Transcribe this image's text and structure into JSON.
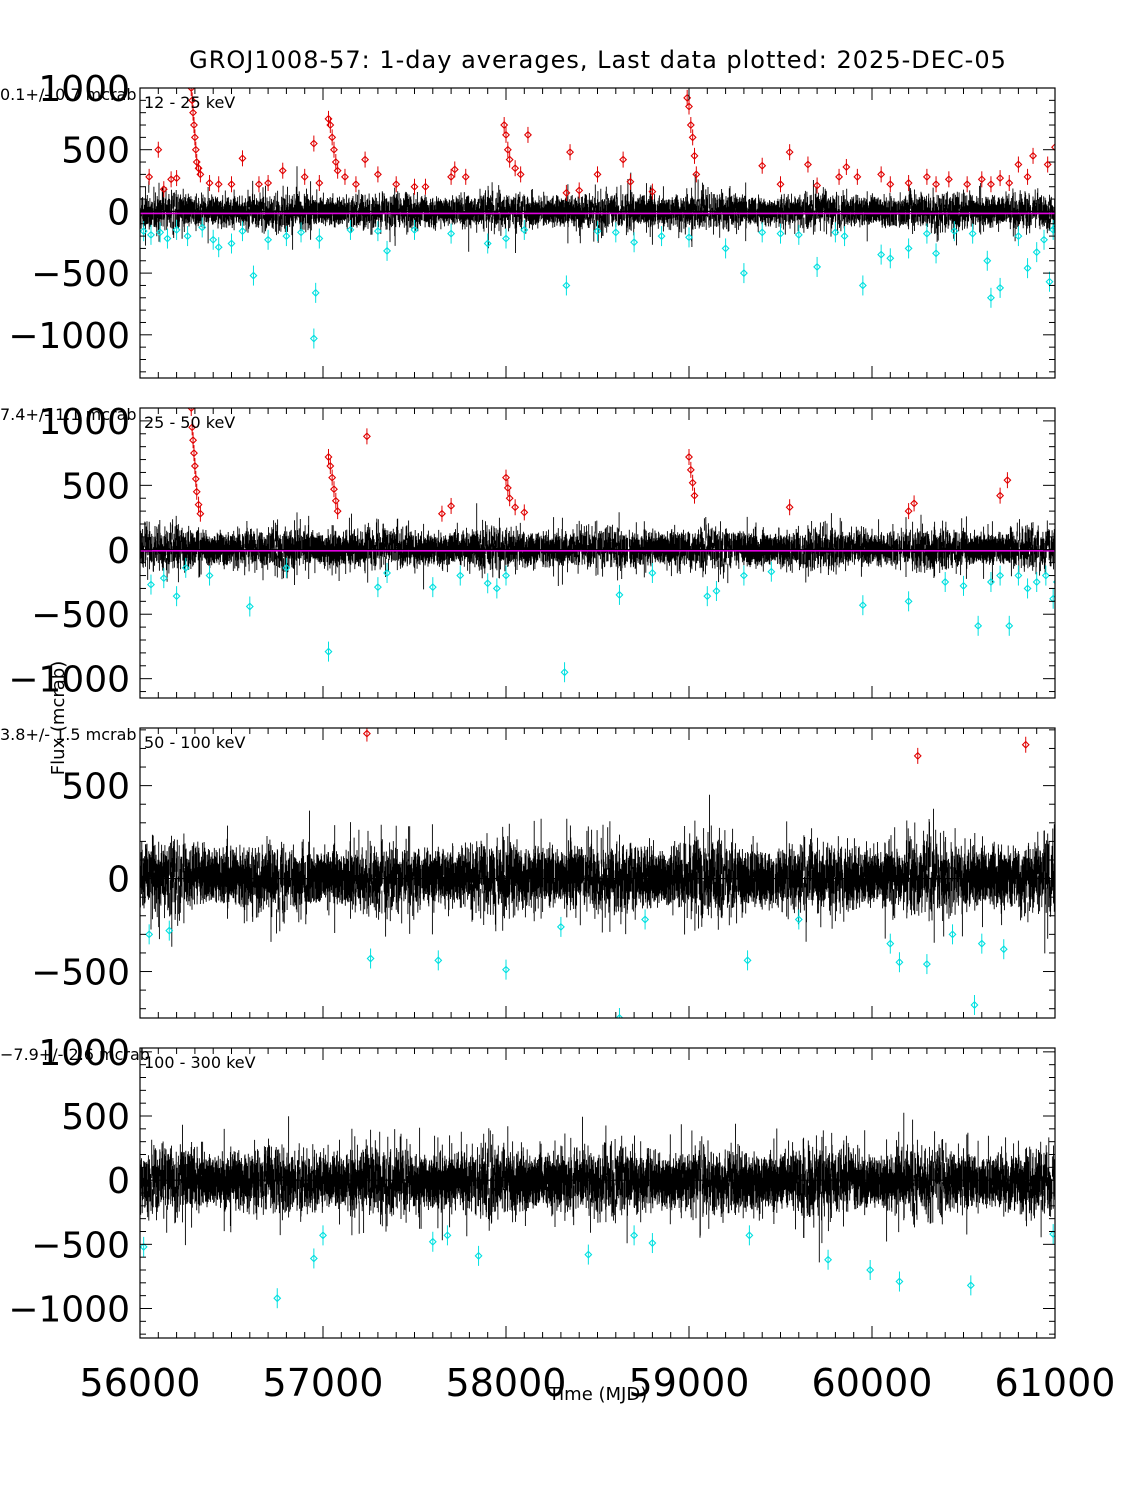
{
  "title": "GROJ1008-57:  1-day averages,  Last data plotted: 2025-DEC-05",
  "xlabel": "Time (MJD)",
  "ylabel": "Flux (mcrab)",
  "colors": {
    "normal": "#000000",
    "high_outlier": "#e00000",
    "low_outlier": "#00e0e0",
    "mean_line": "#e000e0"
  },
  "chart_data": [
    {
      "type": "scatter",
      "band": "12 - 25 keV",
      "mean_label": "0.1+/-      0.7 mcrab",
      "mean": 0.1,
      "xlim": [
        56000,
        61000
      ],
      "ylim": [
        -1350,
        1000
      ],
      "y_ticks": [
        1000,
        500,
        0,
        -500,
        -1000
      ],
      "y_tick_labels": [
        "1000",
        "500",
        "0",
        "−500",
        "−1000"
      ],
      "scatter": 120,
      "seed": 11,
      "high_outliers": [
        [
          56050,
          280
        ],
        [
          56100,
          500
        ],
        [
          56130,
          180
        ],
        [
          56170,
          260
        ],
        [
          56200,
          270
        ],
        [
          56280,
          1000
        ],
        [
          56285,
          900
        ],
        [
          56290,
          800
        ],
        [
          56295,
          700
        ],
        [
          56300,
          600
        ],
        [
          56305,
          500
        ],
        [
          56310,
          400
        ],
        [
          56320,
          350
        ],
        [
          56330,
          300
        ],
        [
          56380,
          230
        ],
        [
          56430,
          220
        ],
        [
          56500,
          220
        ],
        [
          56560,
          430
        ],
        [
          56650,
          220
        ],
        [
          56700,
          230
        ],
        [
          56780,
          330
        ],
        [
          56900,
          280
        ],
        [
          56950,
          550
        ],
        [
          56980,
          230
        ],
        [
          57030,
          750
        ],
        [
          57040,
          700
        ],
        [
          57050,
          600
        ],
        [
          57060,
          500
        ],
        [
          57070,
          400
        ],
        [
          57080,
          330
        ],
        [
          57120,
          280
        ],
        [
          57180,
          220
        ],
        [
          57230,
          420
        ],
        [
          57300,
          300
        ],
        [
          57400,
          220
        ],
        [
          57500,
          200
        ],
        [
          57560,
          200
        ],
        [
          57700,
          280
        ],
        [
          57720,
          340
        ],
        [
          57780,
          280
        ],
        [
          57990,
          700
        ],
        [
          58000,
          620
        ],
        [
          58010,
          500
        ],
        [
          58020,
          420
        ],
        [
          58050,
          350
        ],
        [
          58080,
          300
        ],
        [
          58120,
          620
        ],
        [
          58330,
          150
        ],
        [
          58350,
          480
        ],
        [
          58400,
          170
        ],
        [
          58500,
          300
        ],
        [
          58640,
          420
        ],
        [
          58680,
          240
        ],
        [
          58800,
          160
        ],
        [
          58990,
          920
        ],
        [
          59000,
          850
        ],
        [
          59010,
          700
        ],
        [
          59020,
          600
        ],
        [
          59030,
          450
        ],
        [
          59040,
          300
        ],
        [
          59400,
          370
        ],
        [
          59500,
          220
        ],
        [
          59550,
          480
        ],
        [
          59650,
          380
        ],
        [
          59700,
          210
        ],
        [
          59820,
          280
        ],
        [
          59860,
          360
        ],
        [
          59920,
          280
        ],
        [
          60050,
          300
        ],
        [
          60100,
          220
        ],
        [
          60200,
          230
        ],
        [
          60300,
          280
        ],
        [
          60350,
          220
        ],
        [
          60420,
          260
        ],
        [
          60520,
          220
        ],
        [
          60600,
          260
        ],
        [
          60650,
          220
        ],
        [
          60700,
          270
        ],
        [
          60750,
          230
        ],
        [
          60800,
          380
        ],
        [
          60850,
          280
        ],
        [
          60880,
          450
        ],
        [
          60960,
          380
        ],
        [
          61000,
          520
        ]
      ],
      "low_outliers": [
        [
          56020,
          -160
        ],
        [
          56060,
          -190
        ],
        [
          56110,
          -170
        ],
        [
          56150,
          -220
        ],
        [
          56200,
          -150
        ],
        [
          56260,
          -200
        ],
        [
          56340,
          -130
        ],
        [
          56400,
          -230
        ],
        [
          56430,
          -290
        ],
        [
          56500,
          -260
        ],
        [
          56560,
          -160
        ],
        [
          56620,
          -520
        ],
        [
          56700,
          -230
        ],
        [
          56800,
          -200
        ],
        [
          56880,
          -170
        ],
        [
          56950,
          -1030
        ],
        [
          56960,
          -660
        ],
        [
          56980,
          -220
        ],
        [
          57150,
          -150
        ],
        [
          57300,
          -160
        ],
        [
          57350,
          -320
        ],
        [
          57500,
          -150
        ],
        [
          57700,
          -180
        ],
        [
          57900,
          -260
        ],
        [
          58000,
          -220
        ],
        [
          58100,
          -150
        ],
        [
          58330,
          -600
        ],
        [
          58500,
          -160
        ],
        [
          58600,
          -170
        ],
        [
          58700,
          -250
        ],
        [
          58850,
          -200
        ],
        [
          59000,
          -210
        ],
        [
          59200,
          -300
        ],
        [
          59300,
          -500
        ],
        [
          59400,
          -170
        ],
        [
          59500,
          -180
        ],
        [
          59600,
          -190
        ],
        [
          59700,
          -450
        ],
        [
          59800,
          -170
        ],
        [
          59850,
          -200
        ],
        [
          59950,
          -600
        ],
        [
          60050,
          -350
        ],
        [
          60100,
          -380
        ],
        [
          60200,
          -300
        ],
        [
          60300,
          -180
        ],
        [
          60350,
          -340
        ],
        [
          60450,
          -160
        ],
        [
          60550,
          -180
        ],
        [
          60630,
          -400
        ],
        [
          60650,
          -700
        ],
        [
          60700,
          -620
        ],
        [
          60800,
          -200
        ],
        [
          60850,
          -460
        ],
        [
          60900,
          -330
        ],
        [
          60940,
          -230
        ],
        [
          60970,
          -570
        ],
        [
          60990,
          -150
        ],
        [
          61000,
          -130
        ],
        [
          61010,
          -160
        ]
      ]
    },
    {
      "type": "scatter",
      "band": "25 - 50 keV",
      "mean_label": "7.4+/-      1.1 mcrab",
      "mean": 7.4,
      "xlim": [
        56000,
        61000
      ],
      "ylim": [
        -1150,
        1100
      ],
      "y_ticks": [
        1000,
        500,
        0,
        -500,
        -1000
      ],
      "y_tick_labels": [
        "1000",
        "500",
        "0",
        "−500",
        "−1000"
      ],
      "scatter": 130,
      "seed": 23,
      "high_outliers": [
        [
          56280,
          1100
        ],
        [
          56285,
          950
        ],
        [
          56290,
          850
        ],
        [
          56295,
          750
        ],
        [
          56300,
          650
        ],
        [
          56305,
          550
        ],
        [
          56310,
          450
        ],
        [
          56320,
          350
        ],
        [
          56330,
          280
        ],
        [
          57030,
          720
        ],
        [
          57040,
          650
        ],
        [
          57050,
          560
        ],
        [
          57060,
          470
        ],
        [
          57070,
          380
        ],
        [
          57080,
          300
        ],
        [
          57240,
          880
        ],
        [
          57650,
          280
        ],
        [
          57700,
          340
        ],
        [
          58000,
          560
        ],
        [
          58010,
          480
        ],
        [
          58020,
          400
        ],
        [
          58050,
          330
        ],
        [
          58100,
          290
        ],
        [
          59000,
          720
        ],
        [
          59010,
          620
        ],
        [
          59020,
          520
        ],
        [
          59030,
          420
        ],
        [
          59550,
          330
        ],
        [
          60200,
          300
        ],
        [
          60230,
          360
        ],
        [
          60700,
          420
        ],
        [
          60740,
          540
        ]
      ],
      "low_outliers": [
        [
          56060,
          -270
        ],
        [
          56130,
          -220
        ],
        [
          56200,
          -360
        ],
        [
          56250,
          -140
        ],
        [
          56380,
          -200
        ],
        [
          56600,
          -440
        ],
        [
          56800,
          -140
        ],
        [
          57030,
          -790
        ],
        [
          57300,
          -290
        ],
        [
          57350,
          -180
        ],
        [
          57600,
          -290
        ],
        [
          57750,
          -200
        ],
        [
          57900,
          -260
        ],
        [
          57950,
          -300
        ],
        [
          58000,
          -200
        ],
        [
          58320,
          -950
        ],
        [
          58620,
          -350
        ],
        [
          58800,
          -180
        ],
        [
          59100,
          -360
        ],
        [
          59150,
          -320
        ],
        [
          59300,
          -200
        ],
        [
          59450,
          -170
        ],
        [
          59950,
          -430
        ],
        [
          60200,
          -400
        ],
        [
          60400,
          -250
        ],
        [
          60500,
          -280
        ],
        [
          60580,
          -590
        ],
        [
          60650,
          -250
        ],
        [
          60700,
          -200
        ],
        [
          60750,
          -590
        ],
        [
          60800,
          -200
        ],
        [
          60850,
          -300
        ],
        [
          60900,
          -250
        ],
        [
          60950,
          -200
        ],
        [
          60990,
          -380
        ],
        [
          61010,
          -250
        ]
      ]
    },
    {
      "type": "scatter",
      "band": "50 - 100 keV",
      "mean_label": "3.8+/-      1.5 mcrab",
      "mean": 3.8,
      "xlim": [
        56000,
        61000
      ],
      "ylim": [
        -750,
        810
      ],
      "y_ticks": [
        500,
        0,
        -500
      ],
      "y_tick_labels": [
        "500",
        "0",
        "−500"
      ],
      "scatter": 150,
      "seed": 37,
      "high_outliers": [
        [
          57240,
          780
        ],
        [
          60250,
          660
        ],
        [
          60840,
          720
        ]
      ],
      "low_outliers": [
        [
          56050,
          -300
        ],
        [
          56160,
          -280
        ],
        [
          57260,
          -430
        ],
        [
          57630,
          -440
        ],
        [
          58000,
          -490
        ],
        [
          58300,
          -260
        ],
        [
          58620,
          -750
        ],
        [
          58760,
          -220
        ],
        [
          59320,
          -440
        ],
        [
          59600,
          -220
        ],
        [
          60100,
          -350
        ],
        [
          60150,
          -450
        ],
        [
          60300,
          -460
        ],
        [
          60440,
          -300
        ],
        [
          60560,
          -680
        ],
        [
          60600,
          -350
        ],
        [
          60720,
          -380
        ]
      ]
    },
    {
      "type": "scatter",
      "band": "100 - 300 keV",
      "mean_label": "−7.9+/-      2.6 mcrab",
      "mean": -7.9,
      "xlim": [
        56000,
        61000
      ],
      "ylim": [
        -1230,
        1030
      ],
      "y_ticks": [
        1000,
        500,
        0,
        -500,
        -1000
      ],
      "y_tick_labels": [
        "1000",
        "500",
        "0",
        "−500",
        "−1000"
      ],
      "scatter": 210,
      "seed": 53,
      "high_outliers": [],
      "low_outliers": [
        [
          56020,
          -520
        ],
        [
          56750,
          -920
        ],
        [
          56950,
          -610
        ],
        [
          57000,
          -430
        ],
        [
          57600,
          -480
        ],
        [
          57680,
          -430
        ],
        [
          57850,
          -590
        ],
        [
          58450,
          -580
        ],
        [
          58700,
          -430
        ],
        [
          58800,
          -490
        ],
        [
          59330,
          -430
        ],
        [
          59760,
          -620
        ],
        [
          59990,
          -700
        ],
        [
          60150,
          -790
        ],
        [
          60540,
          -820
        ],
        [
          60990,
          -420
        ]
      ]
    }
  ],
  "x_tick_labels": [
    "56000",
    "57000",
    "58000",
    "59000",
    "60000",
    "61000"
  ],
  "x_ticks": [
    56000,
    57000,
    58000,
    59000,
    60000,
    61000
  ]
}
